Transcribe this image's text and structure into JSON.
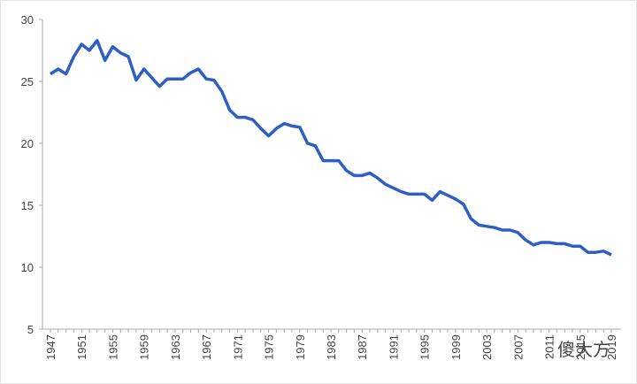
{
  "chart_data": {
    "type": "line",
    "categories": [
      "1947",
      null,
      null,
      null,
      "1951",
      null,
      null,
      null,
      "1955",
      null,
      null,
      null,
      "1959",
      null,
      null,
      null,
      "1963",
      null,
      null,
      null,
      "1967",
      null,
      null,
      null,
      "1971",
      null,
      null,
      null,
      "1975",
      null,
      null,
      null,
      "1979",
      null,
      null,
      null,
      "1983",
      null,
      null,
      null,
      "1987",
      null,
      null,
      null,
      "1991",
      null,
      null,
      null,
      "1995",
      null,
      null,
      null,
      "1999",
      null,
      null,
      null,
      "2003",
      null,
      null,
      null,
      "2007",
      null,
      null,
      null,
      "2011",
      null,
      null,
      null,
      "2015",
      null,
      null,
      null,
      "2019"
    ],
    "series": [
      {
        "color": "#2f5fc2",
        "values": [
          25.6,
          26.0,
          25.6,
          27.0,
          28.0,
          27.5,
          28.3,
          26.7,
          27.8,
          27.3,
          27.0,
          25.1,
          26.0,
          25.3,
          24.6,
          25.2,
          25.2,
          25.2,
          25.7,
          26.0,
          25.2,
          25.1,
          24.2,
          22.7,
          22.1,
          22.1,
          21.9,
          21.2,
          20.6,
          21.2,
          21.6,
          21.4,
          21.3,
          20.0,
          19.8,
          18.6,
          18.6,
          18.6,
          17.8,
          17.4,
          17.4,
          17.6,
          17.2,
          16.7,
          16.4,
          16.1,
          15.9,
          15.9,
          15.9,
          15.4,
          16.1,
          15.8,
          15.5,
          15.1,
          13.9,
          13.4,
          13.3,
          13.2,
          13.0,
          13.0,
          12.8,
          12.2,
          11.8,
          12.0,
          12.0,
          11.9,
          11.9,
          11.7,
          11.7,
          11.2,
          11.2,
          11.3,
          11.0
        ]
      }
    ],
    "ylim": [
      5,
      30
    ],
    "yticks": [
      5,
      10,
      15,
      20,
      25,
      30
    ],
    "watermark": "傻大方"
  }
}
